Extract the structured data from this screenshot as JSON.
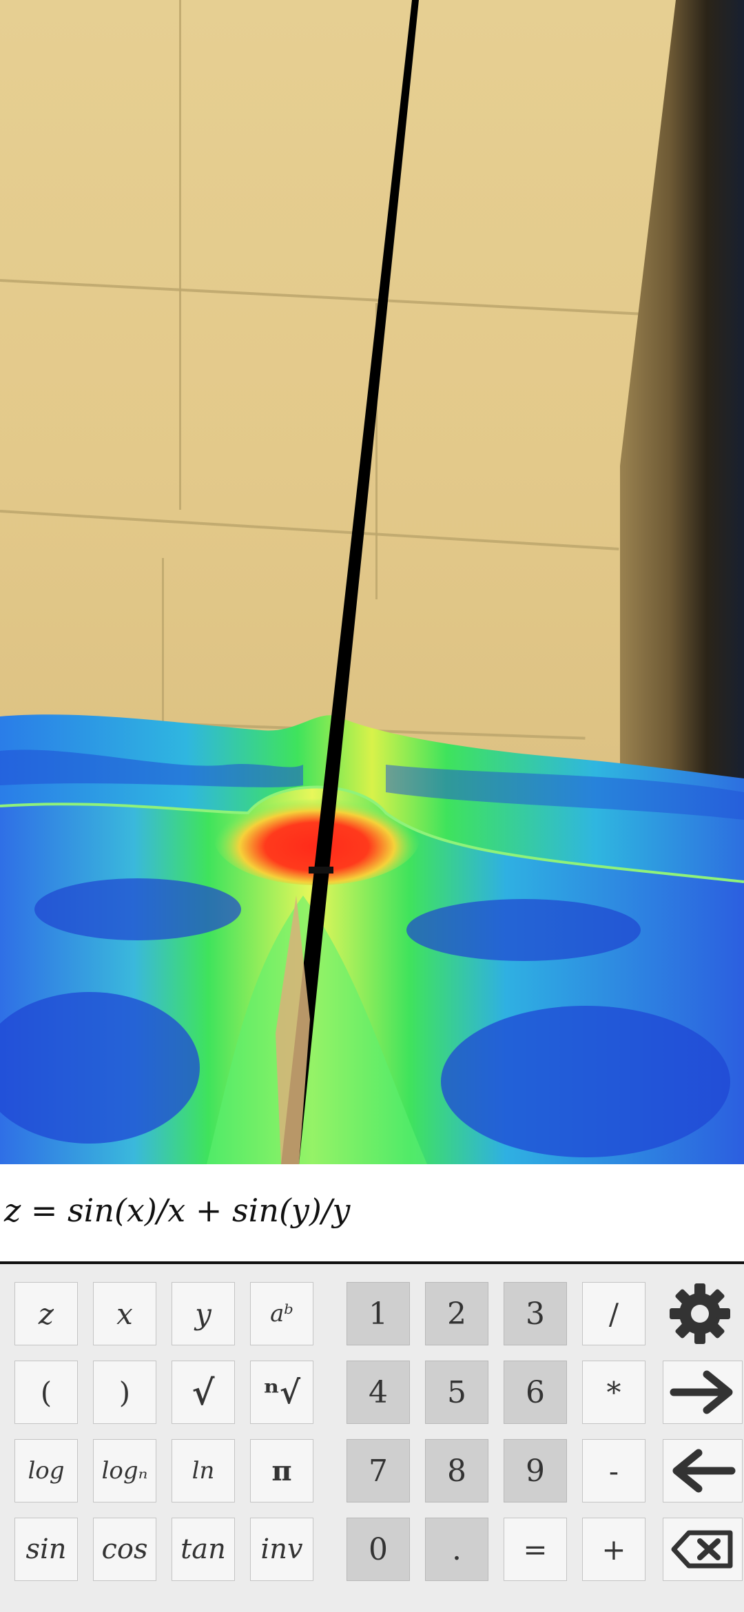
{
  "equation": {
    "text": "z = sin(x)/x + sin(y)/y"
  },
  "keypad": {
    "variables": [
      "z",
      "x",
      "y",
      "aᵇ"
    ],
    "row2_funcs": [
      "(",
      ")",
      "√",
      "ⁿ√"
    ],
    "row3_funcs": [
      "log",
      "logₙ",
      "ln",
      "π"
    ],
    "row4_funcs": [
      "sin",
      "cos",
      "tan",
      "inv"
    ],
    "digits_row1": [
      "1",
      "2",
      "3"
    ],
    "digits_row2": [
      "4",
      "5",
      "6"
    ],
    "digits_row3": [
      "7",
      "8",
      "9"
    ],
    "digits_row4": [
      "0",
      "."
    ],
    "operators": [
      "/",
      "*",
      "-",
      "+"
    ],
    "equals": "=",
    "icons": {
      "settings": "gear-icon",
      "forward": "arrow-right-icon",
      "back": "arrow-left-icon",
      "delete": "backspace-icon"
    }
  },
  "colors": {
    "surface_low": "#1f4fd6",
    "surface_mid": "#39e05a",
    "surface_peak": "#ff2a1a",
    "wall": "#e3c98a",
    "pole": "#000000"
  }
}
